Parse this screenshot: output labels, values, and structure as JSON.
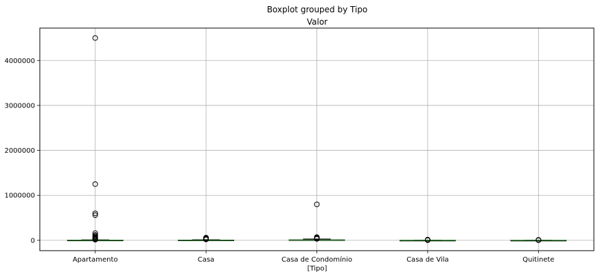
{
  "chart_data": {
    "type": "box",
    "suptitle": "Boxplot grouped by Tipo",
    "title": "Valor",
    "xlabel": "[Tipo]",
    "ylabel": "",
    "ylim": [
      -230000,
      4720000
    ],
    "yticks": [
      0,
      1000000,
      2000000,
      3000000,
      4000000
    ],
    "ytick_labels": [
      "0",
      "1000000",
      "2000000",
      "3000000",
      "4000000"
    ],
    "grid": true,
    "categories": [
      "Apartamento",
      "Casa",
      "Casa de Condomínio",
      "Casa de Vila",
      "Quitinete"
    ],
    "boxes": [
      {
        "category": "Apartamento",
        "whisker_low": 0,
        "q1": 1700,
        "median": 2800,
        "q3": 5000,
        "whisker_high": 12000,
        "outliers": [
          4500000,
          1250000,
          600000,
          560000,
          160000,
          120000,
          95000,
          80000,
          60000,
          45000,
          30000,
          20000,
          15000
        ]
      },
      {
        "category": "Casa",
        "whisker_low": 0,
        "q1": 1500,
        "median": 3000,
        "q3": 6500,
        "whisker_high": 14000,
        "outliers": [
          60000,
          45000,
          35000,
          25000,
          20000
        ]
      },
      {
        "category": "Casa de Condomínio",
        "whisker_low": 0,
        "q1": 4000,
        "median": 7000,
        "q3": 12000,
        "whisker_high": 28000,
        "outliers": [
          800000,
          70000,
          55000,
          40000,
          32000
        ]
      },
      {
        "category": "Casa de Vila",
        "whisker_low": 0,
        "q1": 800,
        "median": 1200,
        "q3": 1800,
        "whisker_high": 3200,
        "outliers": [
          15000,
          10000,
          6000,
          4000
        ]
      },
      {
        "category": "Quitinete",
        "whisker_low": 0,
        "q1": 600,
        "median": 900,
        "q3": 1300,
        "whisker_high": 2500,
        "outliers": [
          10000,
          7000,
          5000,
          3500
        ]
      }
    ],
    "colors": {
      "box": "#000000",
      "median": "#2ca02c",
      "grid": "#b0b0b0",
      "axes": "#000000"
    }
  }
}
